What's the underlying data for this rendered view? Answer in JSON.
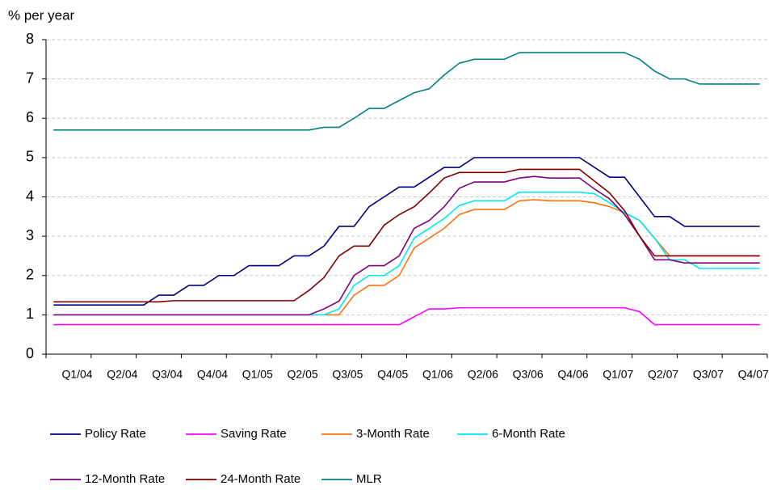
{
  "chart_data": {
    "type": "line",
    "y_label": "% per year",
    "categories": [
      null,
      null,
      "Q1/04",
      null,
      null,
      "Q2/04",
      null,
      null,
      "Q3/04",
      null,
      null,
      "Q4/04",
      null,
      null,
      "Q1/05",
      null,
      null,
      "Q2/05",
      null,
      null,
      "Q3/05",
      null,
      null,
      "Q4/05",
      null,
      null,
      "Q1/06",
      null,
      null,
      "Q2/06",
      null,
      null,
      "Q3/06",
      null,
      null,
      "Q4/06",
      null,
      null,
      "Q1/07",
      null,
      null,
      "Q2/07",
      null,
      null,
      "Q3/07",
      null,
      null,
      "Q4/07"
    ],
    "ylim": [
      0,
      8
    ],
    "yticks": [
      0,
      1,
      2,
      3,
      4,
      5,
      6,
      7,
      8
    ],
    "grid": true,
    "legend": "bottom",
    "series": [
      {
        "name": "Policy Rate",
        "color": "#000080",
        "values": [
          1.25,
          1.25,
          1.25,
          1.25,
          1.25,
          1.25,
          1.25,
          1.5,
          1.5,
          1.75,
          1.75,
          2.0,
          2.0,
          2.25,
          2.25,
          2.25,
          2.5,
          2.5,
          2.75,
          3.25,
          3.25,
          3.75,
          4.0,
          4.25,
          4.25,
          4.5,
          4.75,
          4.75,
          5,
          5,
          5,
          5,
          5,
          5,
          5,
          5,
          4.75,
          4.5,
          4.5,
          4.0,
          3.5,
          3.5,
          3.25,
          3.25,
          3.25,
          3.25,
          3.25,
          3.25
        ]
      },
      {
        "name": "Saving Rate",
        "color": "#ff00ff",
        "values": [
          0.75,
          0.75,
          0.75,
          0.75,
          0.75,
          0.75,
          0.75,
          0.75,
          0.75,
          0.75,
          0.75,
          0.75,
          0.75,
          0.75,
          0.75,
          0.75,
          0.75,
          0.75,
          0.75,
          0.75,
          0.75,
          0.75,
          0.75,
          0.75,
          0.95,
          1.15,
          1.15,
          1.18,
          1.18,
          1.18,
          1.18,
          1.18,
          1.18,
          1.18,
          1.18,
          1.18,
          1.18,
          1.18,
          1.18,
          1.08,
          0.75,
          0.75,
          0.75,
          0.75,
          0.75,
          0.75,
          0.75,
          0.75
        ]
      },
      {
        "name": "3-Month Rate",
        "color": "#ff7010",
        "values": [
          1.0,
          1.0,
          1.0,
          1.0,
          1.0,
          1.0,
          1.0,
          1.0,
          1.0,
          1.0,
          1.0,
          1.0,
          1.0,
          1.0,
          1.0,
          1.0,
          1.0,
          1.0,
          1.0,
          1.0,
          1.5,
          1.75,
          1.75,
          2.0,
          2.7,
          2.95,
          3.2,
          3.55,
          3.68,
          3.68,
          3.68,
          3.9,
          3.93,
          3.9,
          3.9,
          3.9,
          3.85,
          3.75,
          3.6,
          3.4,
          2.95,
          2.5,
          2.5,
          2.5,
          2.5,
          2.5,
          2.5,
          2.5
        ]
      },
      {
        "name": "6-Month Rate",
        "color": "#00e8f0",
        "values": [
          1.0,
          1.0,
          1.0,
          1.0,
          1.0,
          1.0,
          1.0,
          1.0,
          1.0,
          1.0,
          1.0,
          1.0,
          1.0,
          1.0,
          1.0,
          1.0,
          1.0,
          1.0,
          1.0,
          1.15,
          1.75,
          2.0,
          2.0,
          2.25,
          2.95,
          3.2,
          3.45,
          3.78,
          3.9,
          3.9,
          3.9,
          4.12,
          4.12,
          4.12,
          4.12,
          4.12,
          4.08,
          3.85,
          3.6,
          3.4,
          2.95,
          2.4,
          2.4,
          2.18,
          2.18,
          2.18,
          2.18,
          2.18
        ]
      },
      {
        "name": "12-Month Rate",
        "color": "#800080",
        "values": [
          1.0,
          1.0,
          1.0,
          1.0,
          1.0,
          1.0,
          1.0,
          1.0,
          1.0,
          1.0,
          1.0,
          1.0,
          1.0,
          1.0,
          1.0,
          1.0,
          1.0,
          1.0,
          1.15,
          1.35,
          2.0,
          2.25,
          2.25,
          2.5,
          3.2,
          3.4,
          3.75,
          4.22,
          4.38,
          4.38,
          4.38,
          4.48,
          4.52,
          4.48,
          4.48,
          4.48,
          4.2,
          3.95,
          3.55,
          3.0,
          2.4,
          2.4,
          2.32,
          2.32,
          2.32,
          2.32,
          2.32,
          2.32
        ]
      },
      {
        "name": "24-Month Rate",
        "color": "#800000",
        "values": [
          1.33,
          1.33,
          1.33,
          1.33,
          1.33,
          1.33,
          1.33,
          1.33,
          1.36,
          1.36,
          1.36,
          1.36,
          1.36,
          1.36,
          1.36,
          1.36,
          1.36,
          1.62,
          1.95,
          2.5,
          2.75,
          2.75,
          3.28,
          3.55,
          3.75,
          4.1,
          4.48,
          4.62,
          4.62,
          4.62,
          4.62,
          4.7,
          4.7,
          4.7,
          4.7,
          4.7,
          4.4,
          4.1,
          3.65,
          3.0,
          2.5,
          2.5,
          2.5,
          2.5,
          2.5,
          2.5,
          2.5,
          2.5
        ]
      },
      {
        "name": "MLR",
        "color": "#008080",
        "values": [
          5.7,
          5.7,
          5.7,
          5.7,
          5.7,
          5.7,
          5.7,
          5.7,
          5.7,
          5.7,
          5.7,
          5.7,
          5.7,
          5.7,
          5.7,
          5.7,
          5.7,
          5.7,
          5.77,
          5.77,
          6.0,
          6.25,
          6.25,
          6.45,
          6.65,
          6.75,
          7.1,
          7.4,
          7.5,
          7.5,
          7.5,
          7.67,
          7.67,
          7.67,
          7.67,
          7.67,
          7.67,
          7.67,
          7.67,
          7.5,
          7.2,
          7.0,
          7.0,
          6.87,
          6.87,
          6.87,
          6.87,
          6.87
        ]
      }
    ]
  }
}
